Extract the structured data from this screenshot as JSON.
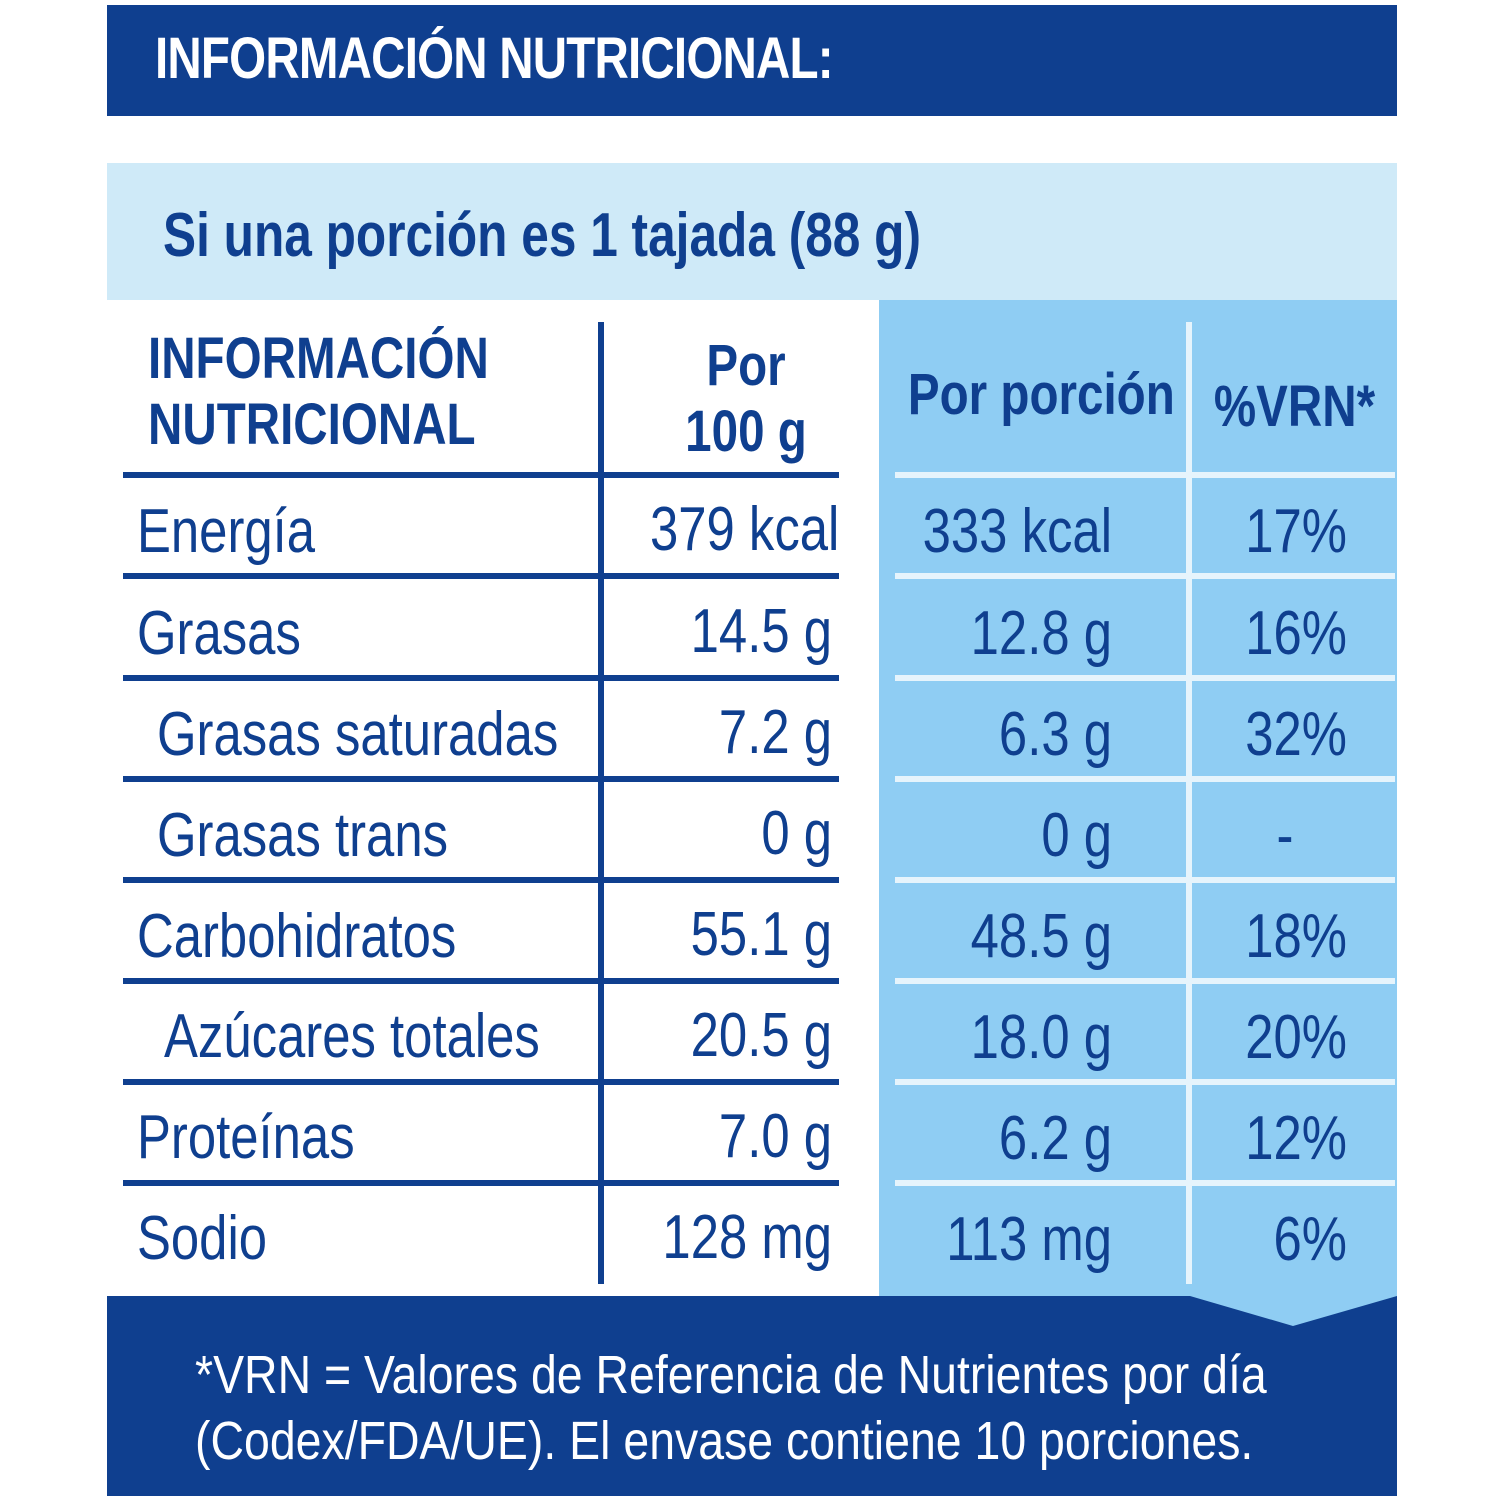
{
  "header": {
    "title": "INFORMACIÓN NUTRICIONAL:"
  },
  "serving": {
    "text": "Si una porción es 1 tajada (88 g)"
  },
  "table": {
    "headers": {
      "nutrient_line1": "INFORMACIÓN",
      "nutrient_line2": "NUTRICIONAL",
      "per100_line1": "Por",
      "per100_line2": "100 g",
      "per_portion": "Por porción",
      "vrn": "%VRN*"
    },
    "rows": [
      {
        "name": "Energía",
        "per100": "379 kcal",
        "portion": "333 kcal",
        "vrn": "17%"
      },
      {
        "name": "Grasas",
        "per100": "14.5 g",
        "portion": "12.8 g",
        "vrn": "16%"
      },
      {
        "name": "Grasas saturadas",
        "per100": "7.2 g",
        "portion": "6.3 g",
        "vrn": "32%"
      },
      {
        "name": "Grasas trans",
        "per100": "0 g",
        "portion": "0 g",
        "vrn": "-"
      },
      {
        "name": "Carbohidratos",
        "per100": "55.1 g",
        "portion": "48.5 g",
        "vrn": "18%"
      },
      {
        "name": "Azúcares totales",
        "per100": "20.5 g",
        "portion": "18.0 g",
        "vrn": "20%"
      },
      {
        "name": "Proteínas",
        "per100": "7.0 g",
        "portion": "6.2 g",
        "vrn": "12%"
      },
      {
        "name": "Sodio",
        "per100": "128 mg",
        "portion": "113 mg",
        "vrn": "6%"
      }
    ]
  },
  "footer": {
    "line1": "*VRN = Valores de Referencia de Nutrientes por día",
    "line2": "(Codex/FDA/UE). El envase contiene 10 porciones."
  },
  "colors": {
    "dark_blue": "#0f3f8f",
    "light_blue": "#8fcdf3",
    "pale_blue": "#cfeaf8"
  }
}
